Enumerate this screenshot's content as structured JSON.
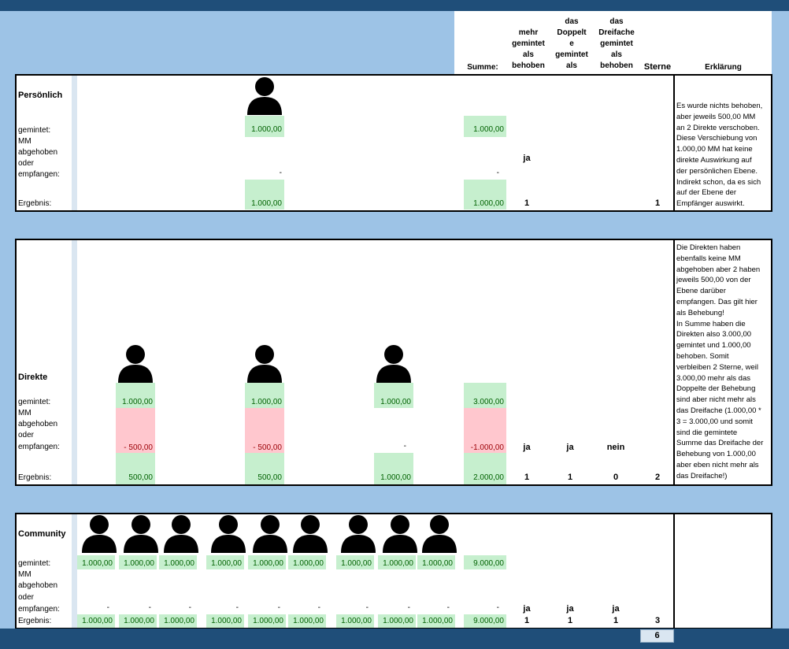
{
  "header": {
    "summe": "Summe:",
    "mehr_gemintet": "mehr\ngemintet\nals\nbehoben",
    "doppelt": "das\nDoppelt\ne\ngemintet\nals",
    "dreifache": "das\nDreifache\ngemintet\nals\nbehoben",
    "sterne": "Sterne",
    "erklaerung": "Erklärung"
  },
  "labels": {
    "gemintet": "gemintet:",
    "mm": "MM",
    "abgehoben": "abgehoben",
    "oder": "oder",
    "empfangen": "empfangen:",
    "ergebnis": "Ergebnis:"
  },
  "persoenlich": {
    "title": "Persönlich",
    "gemintet": "1.000,00",
    "abgehoben": "-",
    "ergebnis": "1.000,00",
    "summe_gemintet": "1.000,00",
    "summe_abgehoben": "-",
    "summe_ergebnis": "1.000,00",
    "ja": "ja",
    "c1": "1",
    "sterne": "1",
    "erklaerung": "Es wurde nichts behoben,\naber jeweils 500,00 MM\nan 2 Direkte verschoben.\nDiese Verschiebung von\n1.000,00 MM hat keine\ndirekte Auswirkung auf\nder persönlichen Ebene.\nIndirekt schon, da es sich\nauf der Ebene der\nEmpfänger auswirkt."
  },
  "direkte": {
    "title": "Direkte",
    "gemintet": [
      "1.000,00",
      "1.000,00",
      "1.000,00"
    ],
    "abgehoben": [
      "- 500,00",
      "- 500,00",
      "-"
    ],
    "ergebnis": [
      "500,00",
      "500,00",
      "1.000,00"
    ],
    "summe_gemintet": "3.000,00",
    "summe_abgehoben": "-1.000,00",
    "summe_ergebnis": "2.000,00",
    "crit": [
      "ja",
      "ja",
      "nein"
    ],
    "crit_vals": [
      "1",
      "1",
      "0"
    ],
    "sterne": "2",
    "erklaerung": "Die Direkten haben\nebenfalls keine MM\nabgehoben aber 2 haben\njeweils 500,00 von der\nEbene darüber\nempfangen. Das gilt hier\nals Behebung!\nIn Summe haben die\nDirekten also 3.000,00\ngemintet und 1.000,00\nbehoben. Somit\nverbleiben 2 Sterne, weil\n3.000,00 mehr als das\nDoppelte der Behebung\nsind aber nicht mehr als\ndas Dreifache (1.000,00 *\n3 = 3.000,00 und somit\nsind die gemintete\nSumme das Dreifache der\nBehebung von 1.000,00\naber eben nicht mehr als\ndas Dreifache!)"
  },
  "community": {
    "title": "Community",
    "gemintet": [
      "1.000,00",
      "1.000,00",
      "1.000,00",
      "1.000,00",
      "1.000,00",
      "1.000,00",
      "1.000,00",
      "1.000,00",
      "1.000,00"
    ],
    "abgehoben": [
      "-",
      "-",
      "-",
      "-",
      "-",
      "-",
      "-",
      "-",
      "-"
    ],
    "ergebnis": [
      "1.000,00",
      "1.000,00",
      "1.000,00",
      "1.000,00",
      "1.000,00",
      "1.000,00",
      "1.000,00",
      "1.000,00",
      "1.000,00"
    ],
    "summe_gemintet": "9.000,00",
    "summe_abgehoben": "-",
    "summe_ergebnis": "9.000,00",
    "crit": [
      "ja",
      "ja",
      "ja"
    ],
    "crit_vals": [
      "1",
      "1",
      "1"
    ],
    "sterne": "3"
  },
  "total_sterne": "6"
}
